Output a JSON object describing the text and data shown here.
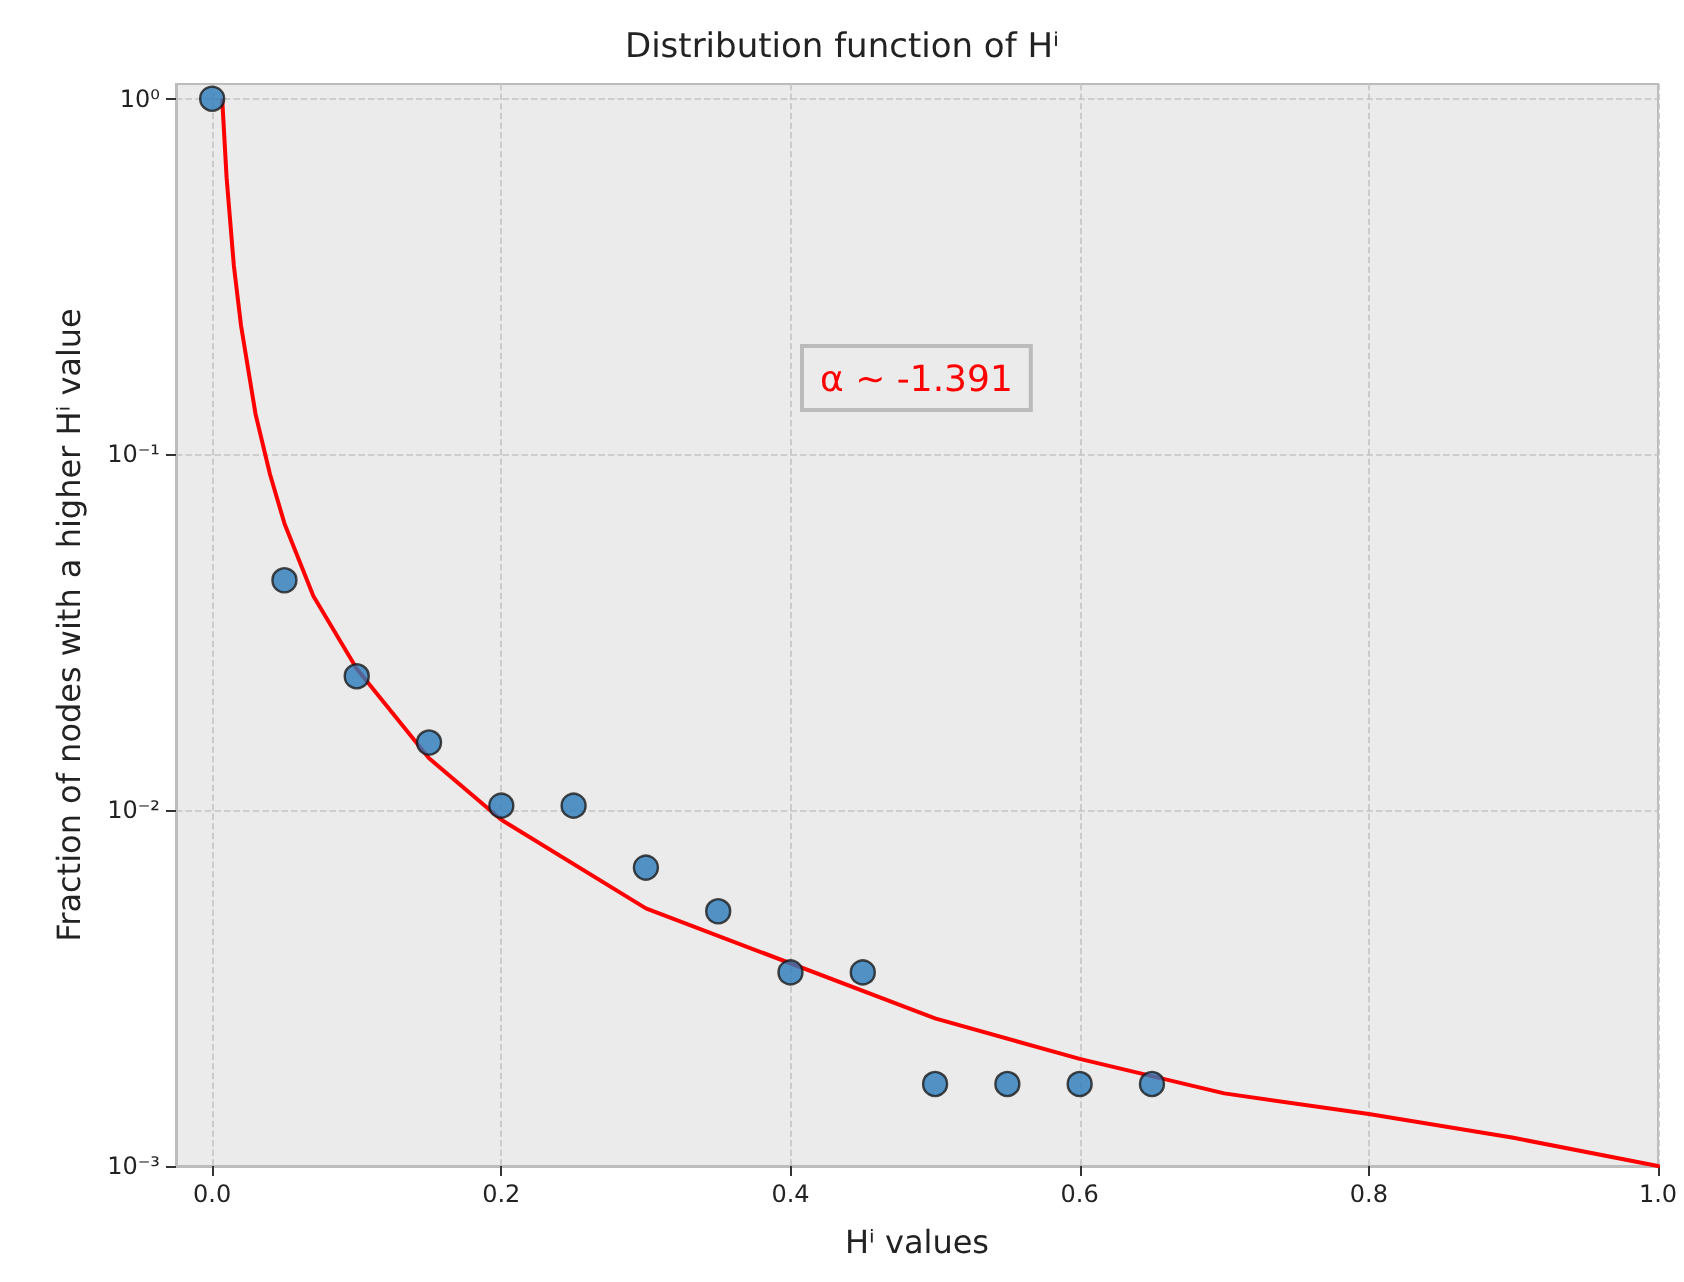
{
  "chart_data": {
    "type": "scatter",
    "title": "Distribution function of Hⁱ",
    "xlabel": "Hⁱ values",
    "ylabel": "Fraction of nodes with a higher Hⁱ value",
    "annotations": [
      "α ~ -1.391"
    ],
    "log": "y",
    "grid": true,
    "xlim": [
      -0.025,
      1.0
    ],
    "ylim": [
      0.001,
      1.1
    ],
    "xticks": [
      {
        "value": 0,
        "label": "0.0"
      },
      {
        "value": 0.2,
        "label": "0.2"
      },
      {
        "value": 0.4,
        "label": "0.4"
      },
      {
        "value": 0.6,
        "label": "0.6"
      },
      {
        "value": 0.8,
        "label": "0.8"
      },
      {
        "value": 1.0,
        "label": "1.0"
      }
    ],
    "yticks": [
      {
        "value": 0.001,
        "label": "10⁻³"
      },
      {
        "value": 0.01,
        "label": "10⁻²"
      },
      {
        "value": 0.1,
        "label": "10⁻¹"
      },
      {
        "value": 1,
        "label": "10⁰"
      }
    ],
    "series": [
      {
        "color": "#2b7bba",
        "marker": "circle",
        "x": [
          0,
          0.05,
          0.1,
          0.15,
          0.2,
          0.25,
          0.3,
          0.35,
          0.4,
          0.45,
          0.5,
          0.55,
          0.6,
          0.65
        ],
        "values": [
          1.0,
          0.0443,
          0.0238,
          0.0155,
          0.0103,
          0.0103,
          0.0069,
          0.0052,
          0.0035,
          0.0035,
          0.0017,
          0.0017,
          0.0017,
          0.0017
        ]
      },
      {
        "type": "line",
        "color": "#ff0000",
        "marker": "none",
        "line_style": "solid",
        "x": [
          0.007,
          0.01,
          0.015,
          0.02,
          0.03,
          0.04,
          0.05,
          0.07,
          0.1,
          0.15,
          0.2,
          0.3,
          0.5,
          0.6,
          0.7,
          0.8,
          0.9,
          1.0
        ],
        "values": [
          0.99,
          0.6,
          0.34,
          0.23,
          0.13,
          0.088,
          0.064,
          0.04,
          0.025,
          0.014,
          0.0094,
          0.0053,
          0.0026,
          0.002,
          0.0016,
          0.0014,
          0.0012,
          0.001
        ]
      }
    ]
  }
}
